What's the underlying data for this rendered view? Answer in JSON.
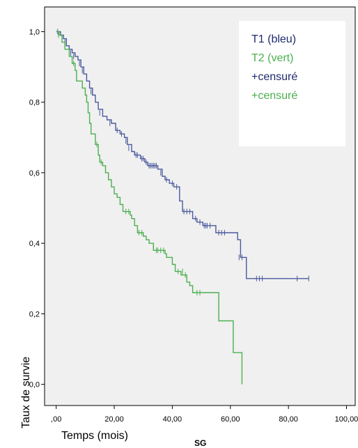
{
  "chart_data": {
    "type": "line",
    "subtype": "kaplan-meier-step",
    "xlabel": "Temps (mois)",
    "ylabel": "Taux de survie",
    "caption": "SG",
    "xlim": [
      -4,
      103
    ],
    "ylim": [
      -0.06,
      1.07
    ],
    "x_ticks": [
      0,
      20,
      40,
      60,
      80,
      100
    ],
    "x_tick_labels": [
      ",00",
      "20,00",
      "40,00",
      "60,00",
      "80,00",
      "100,00"
    ],
    "y_ticks": [
      0,
      0.2,
      0.4,
      0.6,
      0.8,
      1.0
    ],
    "y_tick_labels": [
      "0,0",
      "0,2",
      "0,4",
      "0,6",
      "0,8",
      "1,0"
    ],
    "background": "#f0f0f0",
    "grid": false,
    "legend": {
      "position": "top-right",
      "entries": [
        {
          "text": "T1 (bleu)",
          "color": "#1f2a6e"
        },
        {
          "text": "T2 (vert)",
          "color": "#4caf50"
        },
        {
          "text": "+censuré",
          "color": "#1f2a6e"
        },
        {
          "text": "+censuré",
          "color": "#4caf50"
        }
      ]
    },
    "series": [
      {
        "color": "#4a5a9e",
        "points": [
          [
            0,
            1.0
          ],
          [
            1.5,
            0.99
          ],
          [
            2.5,
            0.98
          ],
          [
            3.5,
            0.96
          ],
          [
            4.5,
            0.95
          ],
          [
            5.5,
            0.94
          ],
          [
            6.5,
            0.93
          ],
          [
            7.5,
            0.92
          ],
          [
            8.5,
            0.9
          ],
          [
            9.5,
            0.88
          ],
          [
            10.5,
            0.86
          ],
          [
            11.5,
            0.84
          ],
          [
            12.5,
            0.82
          ],
          [
            13.5,
            0.8
          ],
          [
            14.5,
            0.78
          ],
          [
            16,
            0.76
          ],
          [
            17.5,
            0.75
          ],
          [
            19,
            0.74
          ],
          [
            20.5,
            0.72
          ],
          [
            22,
            0.71
          ],
          [
            23.5,
            0.7
          ],
          [
            24.5,
            0.68
          ],
          [
            26,
            0.66
          ],
          [
            27,
            0.65
          ],
          [
            29,
            0.64
          ],
          [
            30.5,
            0.63
          ],
          [
            31.5,
            0.62
          ],
          [
            35,
            0.61
          ],
          [
            36.5,
            0.59
          ],
          [
            37.5,
            0.58
          ],
          [
            39,
            0.57
          ],
          [
            40.5,
            0.56
          ],
          [
            42.5,
            0.52
          ],
          [
            43.5,
            0.49
          ],
          [
            47,
            0.47
          ],
          [
            48.5,
            0.46
          ],
          [
            50.5,
            0.45
          ],
          [
            55,
            0.43
          ],
          [
            62.5,
            0.41
          ],
          [
            63.5,
            0.36
          ],
          [
            65.5,
            0.3
          ],
          [
            87,
            0.3
          ]
        ],
        "censored": [
          [
            0.5,
            1.0
          ],
          [
            3,
            0.97
          ],
          [
            5,
            0.94
          ],
          [
            6,
            0.93
          ],
          [
            8,
            0.91
          ],
          [
            9,
            0.89
          ],
          [
            12,
            0.83
          ],
          [
            15,
            0.77
          ],
          [
            18.5,
            0.74
          ],
          [
            21,
            0.72
          ],
          [
            22.5,
            0.71
          ],
          [
            24,
            0.69
          ],
          [
            25,
            0.67
          ],
          [
            27.5,
            0.65
          ],
          [
            28,
            0.65
          ],
          [
            29.5,
            0.64
          ],
          [
            30,
            0.64
          ],
          [
            31,
            0.63
          ],
          [
            32,
            0.62
          ],
          [
            32.5,
            0.62
          ],
          [
            33,
            0.62
          ],
          [
            33.5,
            0.62
          ],
          [
            34,
            0.62
          ],
          [
            34.5,
            0.62
          ],
          [
            36,
            0.6
          ],
          [
            38,
            0.58
          ],
          [
            40,
            0.57
          ],
          [
            41.5,
            0.56
          ],
          [
            44,
            0.49
          ],
          [
            45,
            0.49
          ],
          [
            46,
            0.49
          ],
          [
            48,
            0.47
          ],
          [
            49.5,
            0.46
          ],
          [
            51,
            0.45
          ],
          [
            51.5,
            0.45
          ],
          [
            52,
            0.45
          ],
          [
            53,
            0.45
          ],
          [
            56,
            0.43
          ],
          [
            57,
            0.43
          ],
          [
            58,
            0.43
          ],
          [
            63,
            0.36
          ],
          [
            64,
            0.36
          ],
          [
            69,
            0.3
          ],
          [
            70,
            0.3
          ],
          [
            71,
            0.3
          ],
          [
            83,
            0.3
          ],
          [
            87,
            0.3
          ]
        ]
      },
      {
        "color": "#4caf50",
        "points": [
          [
            0,
            1.0
          ],
          [
            1,
            0.99
          ],
          [
            2,
            0.97
          ],
          [
            3,
            0.95
          ],
          [
            4.5,
            0.93
          ],
          [
            5.5,
            0.91
          ],
          [
            6.5,
            0.89
          ],
          [
            7,
            0.86
          ],
          [
            9,
            0.84
          ],
          [
            10,
            0.82
          ],
          [
            10.5,
            0.8
          ],
          [
            11,
            0.77
          ],
          [
            11.5,
            0.74
          ],
          [
            12,
            0.71
          ],
          [
            13.5,
            0.68
          ],
          [
            14.5,
            0.65
          ],
          [
            15,
            0.63
          ],
          [
            16,
            0.62
          ],
          [
            17,
            0.6
          ],
          [
            18,
            0.58
          ],
          [
            19,
            0.56
          ],
          [
            20,
            0.54
          ],
          [
            21,
            0.53
          ],
          [
            22,
            0.51
          ],
          [
            23,
            0.49
          ],
          [
            25.5,
            0.48
          ],
          [
            26,
            0.47
          ],
          [
            27,
            0.45
          ],
          [
            28,
            0.43
          ],
          [
            30,
            0.42
          ],
          [
            31,
            0.41
          ],
          [
            32,
            0.4
          ],
          [
            33.5,
            0.38
          ],
          [
            37.5,
            0.37
          ],
          [
            38,
            0.36
          ],
          [
            40,
            0.34
          ],
          [
            41,
            0.32
          ],
          [
            43,
            0.31
          ],
          [
            45,
            0.29
          ],
          [
            46,
            0.28
          ],
          [
            47,
            0.26
          ],
          [
            48,
            0.26
          ],
          [
            53.5,
            0.26
          ],
          [
            56,
            0.18
          ],
          [
            61,
            0.09
          ],
          [
            64,
            0.0
          ]
        ],
        "censored": [
          [
            0.8,
            0.99
          ],
          [
            6,
            0.91
          ],
          [
            14,
            0.68
          ],
          [
            15.5,
            0.63
          ],
          [
            24,
            0.49
          ],
          [
            25,
            0.49
          ],
          [
            28.5,
            0.43
          ],
          [
            29.5,
            0.43
          ],
          [
            34.5,
            0.38
          ],
          [
            35,
            0.38
          ],
          [
            36,
            0.38
          ],
          [
            37,
            0.38
          ],
          [
            42,
            0.32
          ],
          [
            43.5,
            0.32
          ],
          [
            44.5,
            0.31
          ],
          [
            48.5,
            0.26
          ],
          [
            49.5,
            0.26
          ]
        ]
      }
    ]
  }
}
